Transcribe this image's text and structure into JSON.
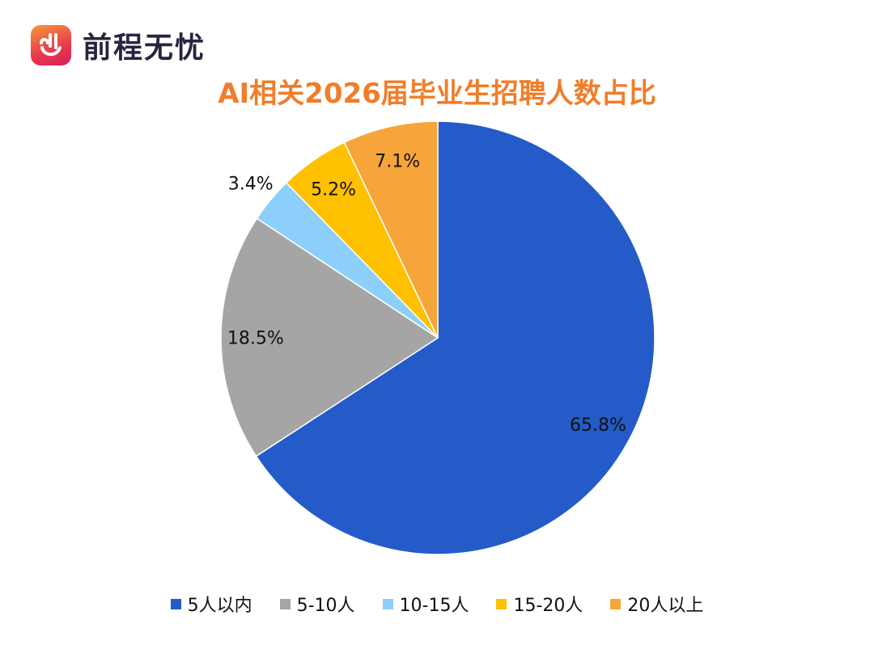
{
  "logo": {
    "text": "前程无忧"
  },
  "chart_data": {
    "type": "pie",
    "title": "AI相关2026届毕业生招聘人数占比",
    "start": "top",
    "direction": "clockwise",
    "legend_position": "bottom",
    "slices": [
      {
        "label": "5人以内",
        "value": 65.8,
        "display": "65.8%",
        "color": "#245bc8"
      },
      {
        "label": "5-10人",
        "value": 18.5,
        "display": "18.5%",
        "color": "#a5a5a5"
      },
      {
        "label": "10-15人",
        "value": 3.4,
        "display": "3.4%",
        "color": "#8ccffb"
      },
      {
        "label": "15-20人",
        "value": 5.2,
        "display": "5.2%",
        "color": "#ffc000"
      },
      {
        "label": "20人以上",
        "value": 7.1,
        "display": "7.1%",
        "color": "#f6a53a"
      }
    ]
  }
}
